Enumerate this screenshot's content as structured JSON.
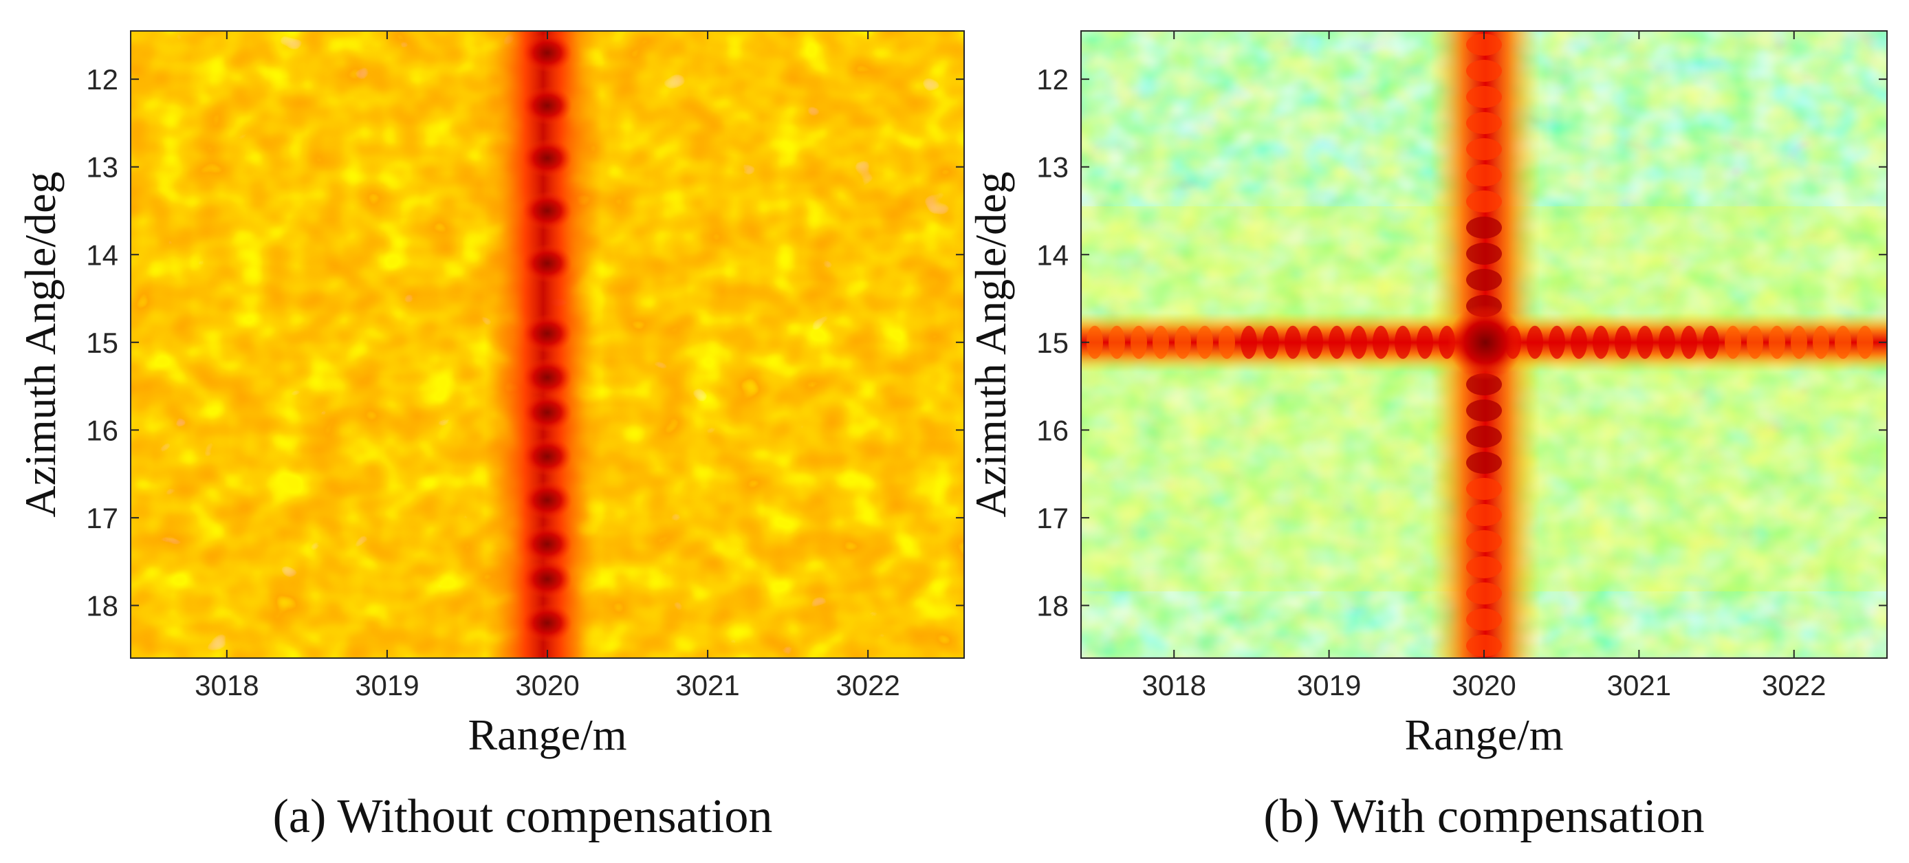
{
  "figure": {
    "panels": [
      {
        "id": "a",
        "caption": "(a) Without compensation",
        "xlabel": "Range/m",
        "ylabel": "Azimuth Angle/deg",
        "xticks": [
          "3018",
          "3019",
          "3020",
          "3021",
          "3022"
        ],
        "yticks": [
          "12",
          "13",
          "14",
          "15",
          "16",
          "17",
          "18"
        ],
        "colormap": "jet",
        "description_style": "unfocused"
      },
      {
        "id": "b",
        "caption": "(b) With compensation",
        "xlabel": "Range/m",
        "ylabel": "Azimuth Angle/deg",
        "xticks": [
          "3018",
          "3019",
          "3020",
          "3021",
          "3022"
        ],
        "yticks": [
          "12",
          "13",
          "14",
          "15",
          "16",
          "17",
          "18"
        ],
        "colormap": "jet",
        "description_style": "focused"
      }
    ]
  },
  "chart_data": [
    {
      "type": "heatmap",
      "title": "(a) Without compensation",
      "xlabel": "Range/m",
      "ylabel": "Azimuth Angle/deg",
      "xlim": [
        3017.4,
        3022.6
      ],
      "ylim": [
        11.45,
        18.6
      ],
      "y_reversed": true,
      "x_ticks": [
        3018,
        3019,
        3020,
        3021,
        3022
      ],
      "y_ticks": [
        12,
        13,
        14,
        15,
        16,
        17,
        18
      ],
      "colormap": "jet",
      "target": {
        "range": 3020,
        "azimuth": 15
      },
      "features": "Energy smeared along azimuth: vertical strong stripe at range 3020 m, high background clutter"
    },
    {
      "type": "heatmap",
      "title": "(b) With compensation",
      "xlabel": "Range/m",
      "ylabel": "Azimuth Angle/deg",
      "xlim": [
        3017.4,
        3022.6
      ],
      "ylim": [
        11.45,
        18.6
      ],
      "y_reversed": true,
      "x_ticks": [
        3018,
        3019,
        3020,
        3021,
        3022
      ],
      "y_ticks": [
        12,
        13,
        14,
        15,
        16,
        17,
        18
      ],
      "colormap": "jet",
      "target": {
        "range": 3020,
        "azimuth": 15
      },
      "features": "Focused point target at (3020 m, 15 deg) with cross-shaped sidelobes along range and azimuth, low background"
    }
  ],
  "colors": {
    "jet_dark_red": "#800000",
    "jet_red": "#ff0000",
    "jet_orange": "#ff8000",
    "jet_yellow": "#ffff00",
    "jet_cyan": "#00ffff",
    "jet_blue": "#0000ff"
  }
}
